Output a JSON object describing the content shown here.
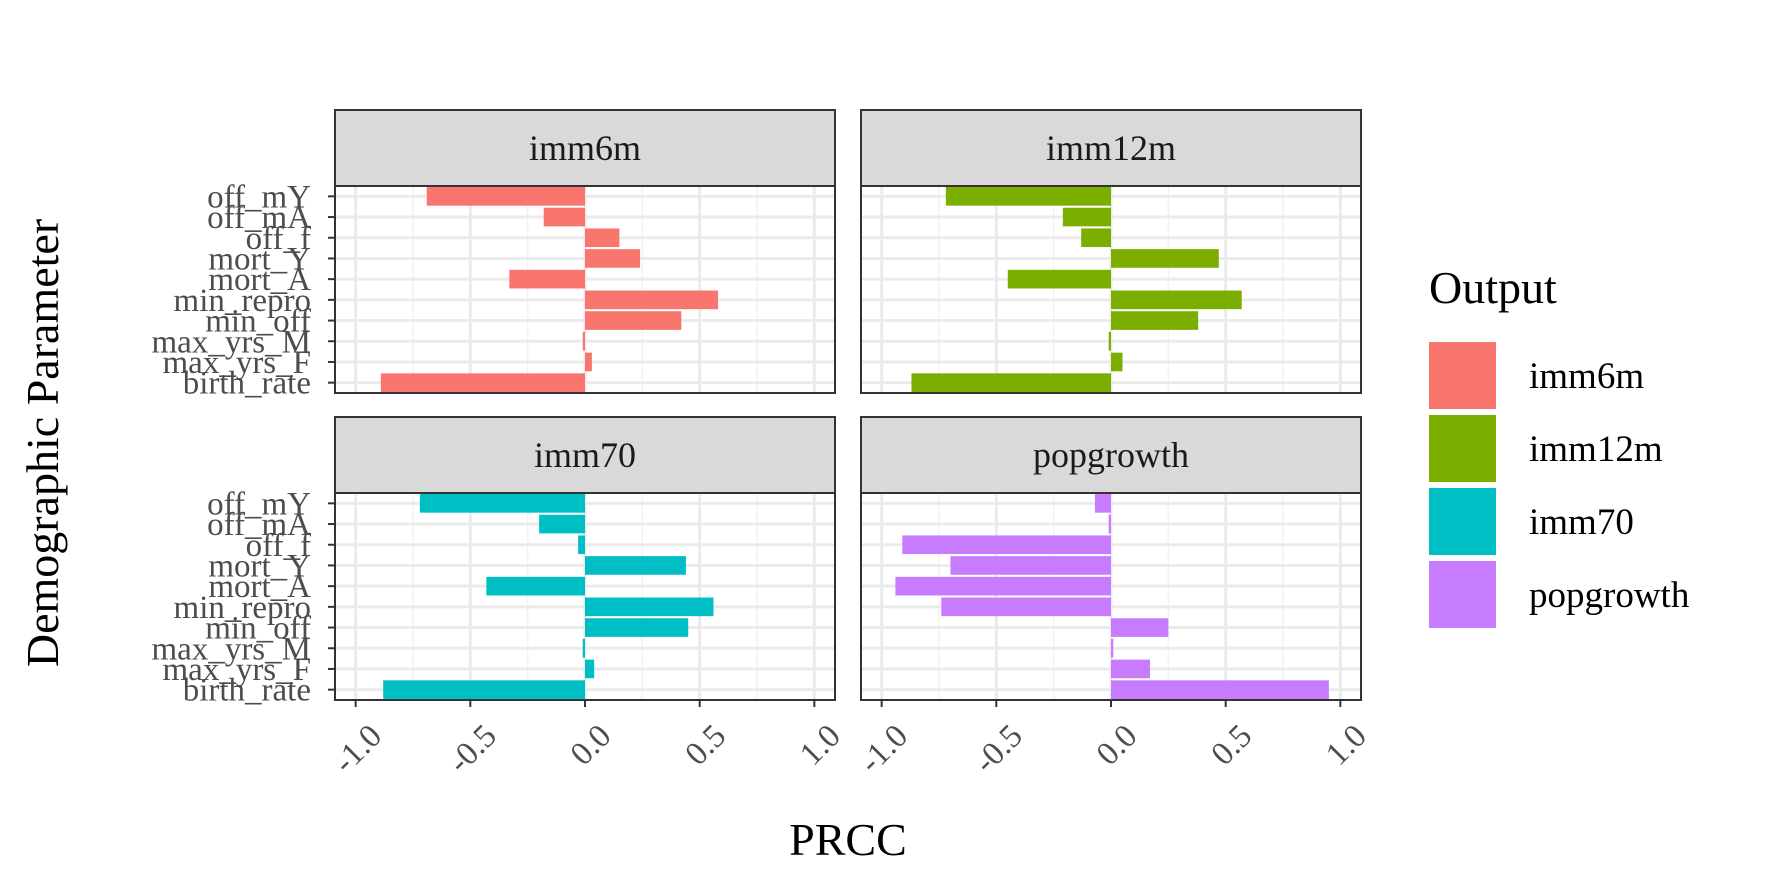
{
  "chart_data": {
    "type": "bar",
    "orientation": "horizontal",
    "facet_grid": "2x2",
    "xlabel": "PRCC",
    "ylabel": "Demographic Parameter",
    "xlim": [
      -1.0,
      1.0
    ],
    "x_ticks": [
      "-1.0",
      "-0.5",
      "0.0",
      "0.5",
      "1.0"
    ],
    "x_tick_values": [
      -1.0,
      -0.5,
      0.0,
      0.5,
      1.0
    ],
    "categories": [
      "off_mY",
      "off_mA",
      "off_f",
      "mort_Y",
      "mort_A",
      "min_repro",
      "min_off",
      "max_yrs_M",
      "max_yrs_F",
      "birth_rate"
    ],
    "grid": true,
    "legend": {
      "title": "Output",
      "position": "right",
      "entries": [
        "imm6m",
        "imm12m",
        "imm70",
        "popgrowth"
      ]
    },
    "series": [
      {
        "name": "imm6m",
        "color": "#F8766D",
        "values": [
          -0.69,
          -0.18,
          0.15,
          0.24,
          -0.33,
          0.58,
          0.42,
          -0.01,
          0.03,
          -0.89
        ]
      },
      {
        "name": "imm12m",
        "color": "#7CAE00",
        "values": [
          -0.72,
          -0.21,
          -0.13,
          0.47,
          -0.45,
          0.57,
          0.38,
          -0.01,
          0.05,
          -0.87
        ]
      },
      {
        "name": "imm70",
        "color": "#00BFC4",
        "values": [
          -0.72,
          -0.2,
          -0.03,
          0.44,
          -0.43,
          0.56,
          0.45,
          -0.01,
          0.04,
          -0.88
        ]
      },
      {
        "name": "popgrowth",
        "color": "#C77CFF",
        "values": [
          -0.07,
          -0.01,
          -0.91,
          -0.7,
          -0.94,
          -0.74,
          0.25,
          0.01,
          0.17,
          0.95
        ]
      }
    ]
  }
}
